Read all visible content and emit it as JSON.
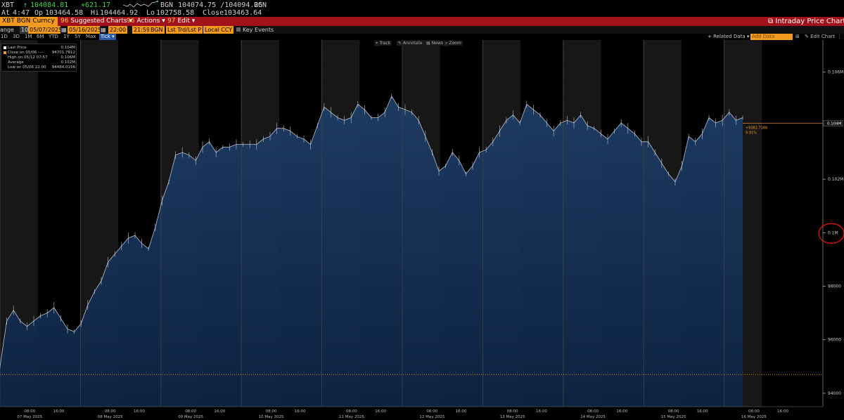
{
  "quote": {
    "ticker": "XBT",
    "last_arrow": "↑",
    "last": "104084.81",
    "change": "+621.17",
    "bid_ask": "104074.75 /104094.25",
    "source1": "BGN",
    "source2": "BGN",
    "time_label": "At",
    "time": "4:47",
    "open_label": "Op",
    "open": "103464.58",
    "high_label": "Hi",
    "high": "104464.92",
    "low_label": "Lo",
    "low": "102758.58",
    "close_label": "Close",
    "close": "103463.64"
  },
  "menu": {
    "security": "XBT BGN Curncy",
    "suggested_num": "96",
    "suggested": "Suggested Charts",
    "actions_num": "96",
    "actions": "Actions",
    "edit_num": "97",
    "edit": "Edit",
    "title": "Intraday Price Chart"
  },
  "options": {
    "range_label": "ange",
    "range_num": "10",
    "start_date": "05/07/2025",
    "end_date": "05/16/2025",
    "start_time": "22:00",
    "end_time": "21:59",
    "source": "BGN",
    "price_field": "Lst Trd/Lst P",
    "currency": "Local CCY",
    "key_events": "Key Events"
  },
  "periods": [
    "1D",
    "3D",
    "1M",
    "6M",
    "YTD",
    "1Y",
    "5Y",
    "Max"
  ],
  "period_selected": "Tick",
  "right_tools": {
    "related": "+ Related Data",
    "add_data": "Add Data",
    "edit_chart": "Edit Chart"
  },
  "chart_tools": [
    "Track",
    "Annotate",
    "News",
    "Zoom"
  ],
  "legend": {
    "last_price_label": "Last Price",
    "last_price_val": "0.104M",
    "close_label": "Close on 05/06 ----",
    "close_val": "94701.7812",
    "high_label": "High on 05/12 07:57",
    "high_val": "0.106M",
    "avg_label": "Average",
    "avg_val": "0.102M",
    "low_label": "Low on 05/06 22:00",
    "low_val": "94484.0156"
  },
  "colors": {
    "fill": "#0d2444",
    "fill_light": "#1e3d66",
    "line": "#d6dce6",
    "night": "#2a2a2a",
    "accent": "#f29a1f",
    "annotation": "#e01010"
  },
  "last_tag": {
    "price": "0.104M",
    "change": "+9382.7188",
    "pct": "9.91%"
  },
  "chart_data": {
    "type": "area",
    "title": "",
    "xlabel": "",
    "ylabel": "",
    "ylim": [
      93500,
      107200
    ],
    "y_ticks": [
      {
        "v": 94000,
        "label": "94000"
      },
      {
        "v": 96000,
        "label": "96000"
      },
      {
        "v": 98000,
        "label": "98000"
      },
      {
        "v": 100000,
        "label": "0.1M"
      },
      {
        "v": 102000,
        "label": "0.102M"
      },
      {
        "v": 106000,
        "label": "0.106M"
      }
    ],
    "x_tick_labels": [
      {
        "time": "08:00",
        "date": "07 May 2025"
      },
      {
        "time": "16:00"
      },
      {
        "time": "08:00",
        "date": "08 May 2025"
      },
      {
        "time": "16:00"
      },
      {
        "time": "08:00",
        "date": "09 May 2025"
      },
      {
        "time": "16:00"
      },
      {
        "time": "08:00",
        "date": "10 May 2025"
      },
      {
        "time": "16:00"
      },
      {
        "time": "08:00",
        "date": "11 May 2025"
      },
      {
        "time": "16:00"
      },
      {
        "time": "08:00",
        "date": "12 May 2025"
      },
      {
        "time": "16:00"
      },
      {
        "time": "08:00",
        "date": "13 May 2025"
      },
      {
        "time": "16:00"
      },
      {
        "time": "08:00",
        "date": "14 May 2025"
      },
      {
        "time": "16:00"
      },
      {
        "time": "08:00",
        "date": "15 May 2025"
      },
      {
        "time": "16:00"
      },
      {
        "time": "08:00",
        "date": "16 May 2025"
      },
      {
        "time": "16:00"
      }
    ],
    "reference_line": 94701.78,
    "last_value": 104084.81,
    "series": [
      {
        "values": [
          95000,
          96700,
          97100,
          96700,
          96500,
          96700,
          96900,
          97000,
          97200,
          96800,
          96400,
          96300,
          96600,
          97300,
          97800,
          98200,
          98900,
          99200,
          99500,
          99800,
          99900,
          99600,
          99400,
          100200,
          101200,
          101900,
          102900,
          103000,
          102900,
          102700,
          103200,
          103400,
          103000,
          103200,
          103200,
          103300,
          103300,
          103300,
          103300,
          103500,
          103600,
          103900,
          103900,
          103800,
          103600,
          103500,
          103300,
          104000,
          104700,
          104500,
          104300,
          104200,
          104300,
          104800,
          104600,
          104300,
          104300,
          104500,
          105100,
          104700,
          104600,
          104500,
          104200,
          103600,
          103000,
          102300,
          102500,
          103000,
          102700,
          102200,
          102500,
          103000,
          103100,
          103400,
          103800,
          104200,
          104400,
          104100,
          104800,
          104600,
          104400,
          104100,
          103800,
          104100,
          104200,
          104100,
          104400,
          104000,
          103900,
          103700,
          103500,
          103800,
          104100,
          103900,
          103700,
          103400,
          103400,
          103000,
          102600,
          102200,
          101900,
          102500,
          103600,
          103400,
          103700,
          104300,
          104100,
          104200,
          104500,
          104200,
          104300
        ]
      }
    ]
  }
}
